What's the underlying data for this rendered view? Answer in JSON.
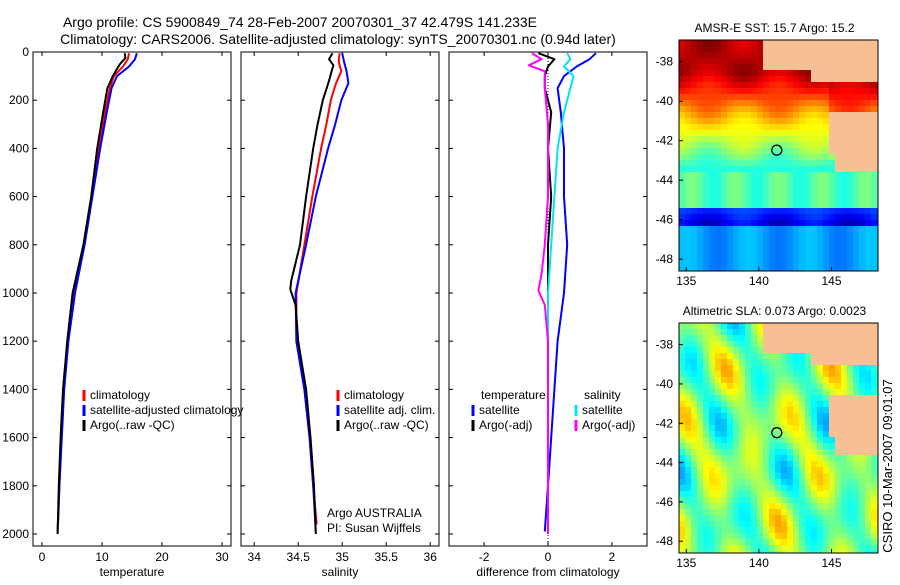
{
  "header": {
    "line1": "Argo profile: CS 5900849_74 28-Feb-2007 20070301_37 42.479S 141.233E",
    "line2": "Climatology: CARS2006. Satellite-adjusted climatology: synTS_20070301.nc (0.94d later)"
  },
  "side_text": "CSIRO 10-Mar-2007 09:01:07",
  "colors": {
    "climatology": "#ff0000",
    "satellite": "#0000ff",
    "argo": "#000000",
    "sal_satellite": "#00e5ee",
    "sal_argo": "#ff00ff",
    "land": "#f7bf94"
  },
  "chart_data": [
    {
      "type": "line",
      "id": "temperature",
      "xlabel": "temperature",
      "ylabel": "",
      "xlim": [
        -1.5,
        31.5
      ],
      "ylim": [
        2050,
        0
      ],
      "x_ticks": [
        0,
        10,
        20,
        30
      ],
      "y_ticks": [
        0,
        200,
        400,
        600,
        800,
        1000,
        1200,
        1400,
        1600,
        1800,
        2000
      ],
      "legend": {
        "position": "bottom-right",
        "entries": [
          {
            "label": "climatology",
            "color": "#ff0000"
          },
          {
            "label": "satellite-adjusted climatology",
            "color": "#0000ff"
          },
          {
            "label": "Argo(..raw -QC)",
            "color": "#000000"
          }
        ]
      },
      "series": [
        {
          "name": "climatology",
          "color": "#ff0000",
          "points": [
            [
              14.5,
              5
            ],
            [
              14.3,
              30
            ],
            [
              13.5,
              60
            ],
            [
              12,
              100
            ],
            [
              11.3,
              150
            ],
            [
              10.5,
              250
            ],
            [
              9.5,
              400
            ],
            [
              8.3,
              600
            ],
            [
              7,
              800
            ],
            [
              5.3,
              1000
            ],
            [
              4.3,
              1200
            ],
            [
              3.6,
              1400
            ],
            [
              3.2,
              1600
            ],
            [
              2.9,
              1800
            ],
            [
              2.7,
              1950
            ]
          ]
        },
        {
          "name": "satellite-adjusted climatology",
          "color": "#0000ff",
          "points": [
            [
              15.8,
              5
            ],
            [
              15.5,
              30
            ],
            [
              14.5,
              60
            ],
            [
              12.5,
              100
            ],
            [
              11.6,
              150
            ],
            [
              10.8,
              250
            ],
            [
              9.7,
              400
            ],
            [
              8.4,
              600
            ],
            [
              7.1,
              800
            ],
            [
              5.5,
              1000
            ],
            [
              4.4,
              1200
            ],
            [
              3.7,
              1400
            ],
            [
              3.3,
              1600
            ],
            [
              2.9,
              1800
            ],
            [
              2.6,
              1990
            ]
          ]
        },
        {
          "name": "Argo(..raw -QC)",
          "color": "#000000",
          "points": [
            [
              13.8,
              5
            ],
            [
              13.9,
              25
            ],
            [
              13,
              50
            ],
            [
              12.5,
              70
            ],
            [
              11.8,
              100
            ],
            [
              10.9,
              150
            ],
            [
              10.2,
              250
            ],
            [
              9.2,
              400
            ],
            [
              8.2,
              600
            ],
            [
              6.9,
              800
            ],
            [
              5.1,
              1000
            ],
            [
              4.2,
              1200
            ],
            [
              3.5,
              1400
            ],
            [
              3.1,
              1600
            ],
            [
              2.8,
              1800
            ],
            [
              2.6,
              2000
            ]
          ]
        }
      ]
    },
    {
      "type": "line",
      "id": "salinity",
      "xlabel": "salinity",
      "ylabel": "",
      "xlim": [
        33.85,
        36.1
      ],
      "ylim": [
        2050,
        0
      ],
      "x_ticks": [
        34,
        34.5,
        35,
        35.5,
        36
      ],
      "y_ticks": [
        0,
        200,
        400,
        600,
        800,
        1000,
        1200,
        1400,
        1600,
        1800,
        2000
      ],
      "legend": {
        "position": "bottom-right",
        "entries": [
          {
            "label": "climatology",
            "color": "#ff0000"
          },
          {
            "label": "satellite adj. clim.",
            "color": "#0000ff"
          },
          {
            "label": "Argo(..raw -QC)",
            "color": "#000000"
          }
        ]
      },
      "annotation": [
        "Argo AUSTRALIA",
        "PI: Susan Wijffels"
      ],
      "series": [
        {
          "name": "climatology",
          "color": "#ff0000",
          "points": [
            [
              34.97,
              5
            ],
            [
              34.96,
              40
            ],
            [
              34.99,
              80
            ],
            [
              34.93,
              130
            ],
            [
              34.87,
              200
            ],
            [
              34.82,
              300
            ],
            [
              34.76,
              400
            ],
            [
              34.66,
              600
            ],
            [
              34.57,
              800
            ],
            [
              34.48,
              1000
            ],
            [
              34.48,
              1200
            ],
            [
              34.57,
              1400
            ],
            [
              34.63,
              1600
            ],
            [
              34.67,
              1800
            ],
            [
              34.71,
              1960
            ]
          ]
        },
        {
          "name": "satellite adj. clim.",
          "color": "#0000ff",
          "points": [
            [
              35,
              5
            ],
            [
              35.02,
              40
            ],
            [
              35.05,
              80
            ],
            [
              35.07,
              130
            ],
            [
              34.99,
              200
            ],
            [
              34.92,
              300
            ],
            [
              34.84,
              400
            ],
            [
              34.7,
              600
            ],
            [
              34.59,
              800
            ],
            [
              34.47,
              1000
            ],
            [
              34.48,
              1200
            ],
            [
              34.57,
              1400
            ],
            [
              34.63,
              1600
            ],
            [
              34.67,
              1800
            ],
            [
              34.7,
              1990
            ]
          ]
        },
        {
          "name": "Argo(..raw -QC)",
          "color": "#000000",
          "points": [
            [
              34.89,
              5
            ],
            [
              34.85,
              30
            ],
            [
              34.9,
              55
            ],
            [
              34.88,
              80
            ],
            [
              34.85,
              120
            ],
            [
              34.78,
              200
            ],
            [
              34.72,
              300
            ],
            [
              34.67,
              400
            ],
            [
              34.59,
              600
            ],
            [
              34.52,
              800
            ],
            [
              34.42,
              950
            ],
            [
              34.41,
              985
            ],
            [
              34.47,
              1050
            ],
            [
              34.5,
              1200
            ],
            [
              34.59,
              1400
            ],
            [
              34.64,
              1600
            ],
            [
              34.68,
              1800
            ],
            [
              34.7,
              2000
            ]
          ]
        }
      ]
    },
    {
      "type": "line",
      "id": "difference",
      "xlabel": "difference from climatology",
      "ylabel": "",
      "xlim": [
        -3.1,
        3.1
      ],
      "ylim": [
        2050,
        0
      ],
      "x_ticks": [
        -2,
        0,
        2
      ],
      "y_ticks": [
        0,
        200,
        400,
        600,
        800,
        1000,
        1200,
        1400,
        1600,
        1800,
        2000
      ],
      "legend": {
        "position": "bottom",
        "entries": [
          {
            "label": "temperature",
            "color": ""
          },
          {
            "label": "satellite",
            "color": "#0000ff"
          },
          {
            "label": "Argo(-adj)",
            "color": "#000000"
          },
          {
            "label": "salinity",
            "color": ""
          },
          {
            "label": "satellite",
            "color": "#00e5ee"
          },
          {
            "label": "Argo(-adj)",
            "color": "#ff00ff"
          }
        ]
      },
      "series": [
        {
          "name": "temperature satellite",
          "color": "#0000ff",
          "points": [
            [
              1.5,
              5
            ],
            [
              1.3,
              30
            ],
            [
              0.9,
              60
            ],
            [
              0.5,
              100
            ],
            [
              0.3,
              150
            ],
            [
              0.4,
              250
            ],
            [
              0.5,
              400
            ],
            [
              0.5,
              600
            ],
            [
              0.6,
              800
            ],
            [
              0.5,
              1000
            ],
            [
              0.3,
              1200
            ],
            [
              0.2,
              1400
            ],
            [
              0.1,
              1600
            ],
            [
              0,
              1800
            ],
            [
              -0.1,
              1990
            ]
          ]
        },
        {
          "name": "temperature Argo(-adj)",
          "color": "#000000",
          "points": [
            [
              -0.3,
              5
            ],
            [
              0.2,
              30
            ],
            [
              0,
              60
            ],
            [
              -0.1,
              100
            ],
            [
              -0.1,
              150
            ],
            [
              0.1,
              250
            ],
            [
              0,
              400
            ],
            [
              0.1,
              600
            ],
            [
              0,
              800
            ],
            [
              0,
              1000
            ],
            [
              0,
              1200
            ],
            [
              0,
              1400
            ],
            [
              0,
              1600
            ],
            [
              0,
              1800
            ],
            [
              0,
              2000
            ]
          ]
        },
        {
          "name": "salinity satellite",
          "color": "#00e5ee",
          "points": [
            [
              0.6,
              5
            ],
            [
              0.7,
              30
            ],
            [
              0.5,
              60
            ],
            [
              0.8,
              100
            ],
            [
              0.7,
              150
            ],
            [
              0.5,
              250
            ],
            [
              0.3,
              400
            ],
            [
              0.2,
              600
            ],
            [
              0.1,
              800
            ],
            [
              0,
              1000
            ],
            [
              0,
              1200
            ],
            [
              0,
              1400
            ],
            [
              0,
              1600
            ],
            [
              0,
              1800
            ],
            [
              0,
              1990
            ]
          ]
        },
        {
          "name": "salinity Argo(-adj)",
          "color": "#ff00ff",
          "points": [
            [
              -0.5,
              5
            ],
            [
              -0.2,
              30
            ],
            [
              -0.6,
              55
            ],
            [
              -0.1,
              80
            ],
            [
              -0.1,
              150
            ],
            [
              0,
              300
            ],
            [
              0,
              600
            ],
            [
              -0.1,
              800
            ],
            [
              -0.2,
              920
            ],
            [
              -0.3,
              990
            ],
            [
              -0.1,
              1050
            ],
            [
              0,
              1200
            ],
            [
              0,
              1400
            ],
            [
              0,
              1600
            ],
            [
              0,
              1800
            ],
            [
              0,
              2000
            ]
          ]
        }
      ]
    },
    {
      "type": "heatmap",
      "id": "amsr_sst",
      "title": "AMSR-E SST: 15.7 Argo: 15.2",
      "xlim": [
        134.5,
        148.2
      ],
      "ylim": [
        -48.6,
        -36.9
      ],
      "x_ticks": [
        135,
        140,
        145
      ],
      "y_ticks": [
        -38,
        -40,
        -42,
        -44,
        -46,
        -48
      ],
      "argo_position": {
        "lon": 141.233,
        "lat": -42.479
      }
    },
    {
      "type": "heatmap",
      "id": "altimetric_sla",
      "title": "Altimetric SLA: 0.073 Argo: 0.0023",
      "xlim": [
        134.5,
        148.2
      ],
      "ylim": [
        -48.6,
        -36.9
      ],
      "x_ticks": [
        135,
        140,
        145
      ],
      "y_ticks": [
        -38,
        -40,
        -42,
        -44,
        -46,
        -48
      ],
      "argo_position": {
        "lon": 141.233,
        "lat": -42.479
      }
    }
  ]
}
